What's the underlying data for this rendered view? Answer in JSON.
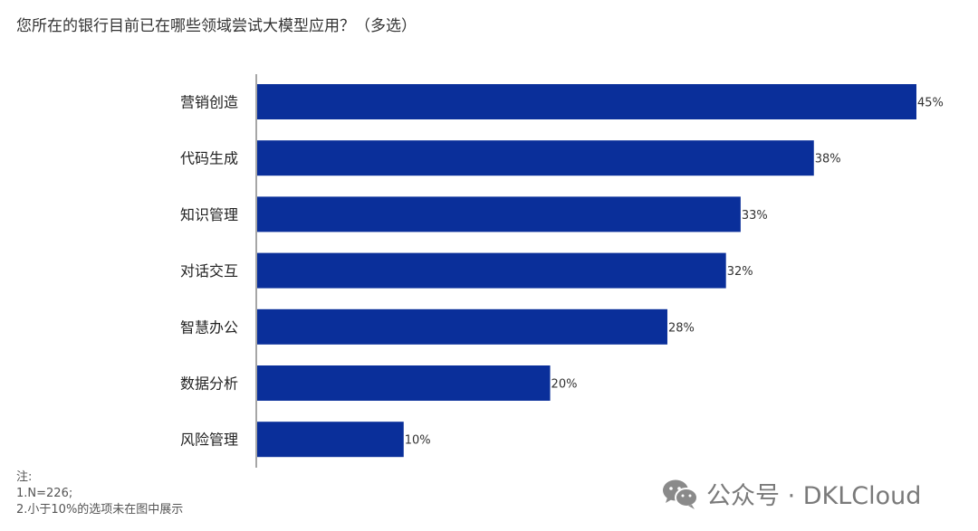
{
  "title": "您所在的银行目前已在哪些领域尝试大模型应用？（多选）",
  "chart_data": {
    "type": "bar",
    "orientation": "horizontal",
    "categories": [
      "营销创造",
      "代码生成",
      "知识管理",
      "对话交互",
      "智慧办公",
      "数据分析",
      "风险管理"
    ],
    "values": [
      45,
      38,
      33,
      32,
      28,
      20,
      10
    ],
    "value_labels": [
      "45%",
      "38%",
      "33%",
      "32%",
      "28%",
      "20%",
      "10%"
    ],
    "unit": "%",
    "xlim": [
      0,
      45
    ],
    "bar_color": "#0a2f9a",
    "grid": false
  },
  "notes": {
    "heading": "注:",
    "line1": "1.N=226;",
    "line2": "2.小于10%的选项未在图中展示"
  },
  "watermark": {
    "icon": "wechat-icon",
    "text": "公众号 · DKLCloud"
  }
}
